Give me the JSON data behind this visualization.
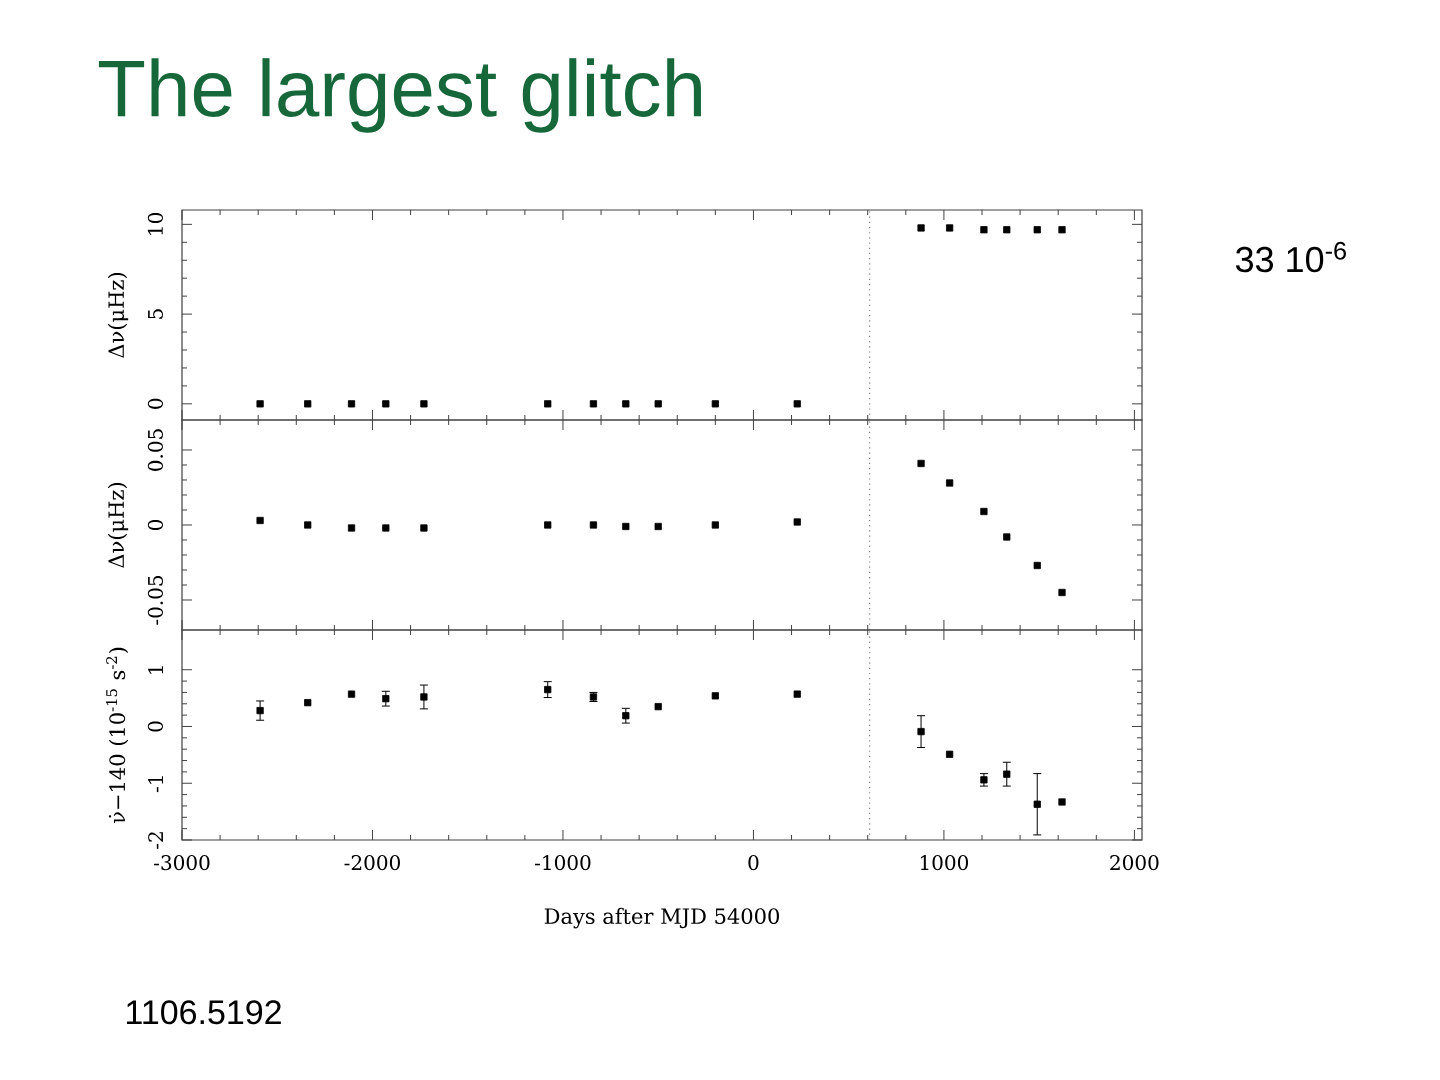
{
  "chart_data": [
    {
      "type": "scatter",
      "title": "The largest glitch",
      "ylabel": "Δν(μHz)",
      "annotations": [
        "33 10$^{-6}$"
      ],
      "x": [
        -2590,
        -2340,
        -2110,
        -1930,
        -1730,
        -1080,
        -840,
        -670,
        -500,
        -200,
        230,
        880,
        1030,
        1210,
        1330,
        1490,
        1620
      ],
      "series": [
        {
          "color": "#000000",
          "values": [
            0,
            0,
            0,
            0,
            0,
            0,
            0,
            0,
            0,
            0,
            0,
            9.8,
            9.8,
            9.7,
            9.7,
            9.7,
            9.7
          ]
        }
      ],
      "xlim": [
        -3000,
        2040
      ],
      "xticks": [
        -3000,
        -2000,
        -1000,
        0,
        1000,
        2000
      ],
      "ylim": [
        -0.9,
        10.8
      ],
      "yticks": [
        0,
        5,
        10
      ],
      "tick_labels": "y",
      "marker": "square",
      "ref_lines": [
        {
          "axis": "x",
          "value": 610,
          "line_style": "dotted",
          "color": "#808080"
        }
      ]
    },
    {
      "type": "scatter",
      "ylabel": "Δν(μHz)",
      "x": [
        -2590,
        -2340,
        -2110,
        -1930,
        -1730,
        -1080,
        -840,
        -670,
        -500,
        -200,
        230,
        880,
        1030,
        1210,
        1330,
        1490,
        1620
      ],
      "series": [
        {
          "color": "#000000",
          "values": [
            0.003,
            0,
            -0.002,
            -0.002,
            -0.002,
            0,
            0,
            -0.001,
            -0.001,
            0,
            0.002,
            0.041,
            0.028,
            0.009,
            -0.008,
            -0.027,
            -0.045
          ]
        }
      ],
      "xlim": [
        -3000,
        2040
      ],
      "xticks": [
        -3000,
        -2000,
        -1000,
        0,
        1000,
        2000
      ],
      "ylim": [
        -0.07,
        0.07
      ],
      "yticks": [
        -0.05,
        0,
        0.05
      ],
      "tick_labels": "y",
      "marker": "square",
      "ref_lines": [
        {
          "axis": "x",
          "value": 610,
          "line_style": "dotted",
          "color": "#808080"
        }
      ]
    },
    {
      "type": "scatter",
      "xlabel": "Days after MJD 54000",
      "ylabel": "ν̇−140 (10$^{-15}$ s$^{-2}$)",
      "annotations": [
        "1106.5192"
      ],
      "x": [
        -2590,
        -2340,
        -2110,
        -1930,
        -1730,
        -1080,
        -840,
        -670,
        -500,
        -200,
        230,
        880,
        1030,
        1210,
        1330,
        1490,
        1620
      ],
      "series": [
        {
          "color": "#000000",
          "values": [
            0.28,
            0.42,
            0.57,
            0.49,
            0.52,
            0.65,
            0.52,
            0.19,
            0.35,
            0.54,
            0.57,
            -0.09,
            -0.49,
            -0.94,
            -0.84,
            -1.37,
            -1.33
          ],
          "errors": [
            0.17,
            null,
            null,
            0.13,
            0.21,
            0.14,
            0.08,
            0.13,
            null,
            null,
            null,
            0.28,
            null,
            0.11,
            0.21,
            0.54,
            null
          ]
        }
      ],
      "xlim": [
        -3000,
        2040
      ],
      "xticks": [
        -3000,
        -2000,
        -1000,
        0,
        1000,
        2000
      ],
      "ylim": [
        -2,
        1.7
      ],
      "yticks": [
        -2,
        -1,
        0,
        1
      ],
      "marker": "square",
      "ref_lines": [
        {
          "axis": "x",
          "value": 610,
          "line_style": "dotted",
          "color": "#808080"
        }
      ]
    }
  ]
}
